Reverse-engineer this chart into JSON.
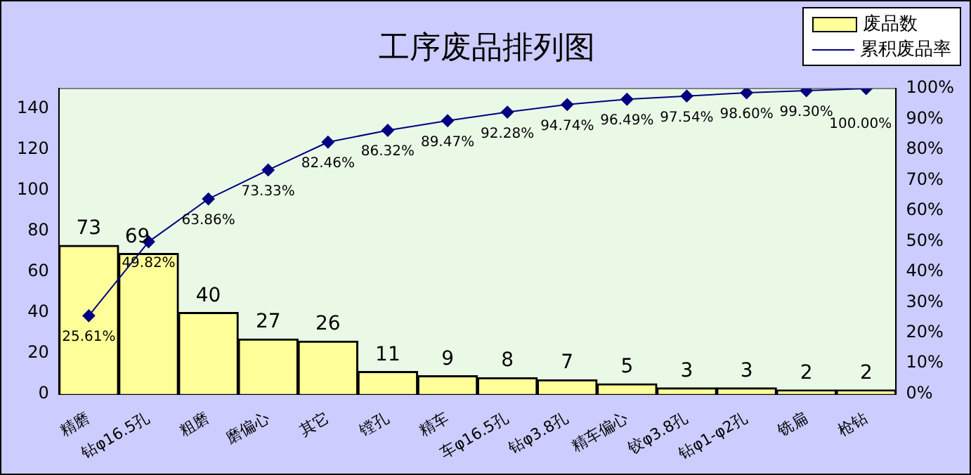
{
  "chart_data": {
    "type": "bar",
    "title": "工序废品排列图",
    "categories": [
      "精磨",
      "钻φ16.5孔",
      "粗磨",
      "磨偏心",
      "其它",
      "镗孔",
      "精车",
      "车φ16.5孔",
      "钻φ3.8孔",
      "精车偏心",
      "铰φ3.8孔",
      "钻φ1-φ2孔",
      "铣扁",
      "枪钻"
    ],
    "series": [
      {
        "name": "废品数",
        "color": "#ffff99",
        "values": [
          73,
          69,
          40,
          27,
          26,
          11,
          9,
          8,
          7,
          5,
          3,
          3,
          2,
          2
        ],
        "value_labels": [
          "73",
          "69",
          "40",
          "27",
          "26",
          "11",
          "9",
          "8",
          "7",
          "5",
          "3",
          "3",
          "2",
          "2"
        ]
      },
      {
        "name": "累积废品率",
        "type": "line",
        "axis": "y2",
        "color": "#000080",
        "values": [
          25.61,
          49.82,
          63.86,
          73.33,
          82.46,
          86.32,
          89.47,
          92.28,
          94.74,
          96.49,
          97.54,
          98.6,
          99.3,
          100
        ],
        "value_labels": [
          "25.61%",
          "49.82%",
          "63.86%",
          "73.33%",
          "82.46%",
          "86.32%",
          "89.47%",
          "92.28%",
          "94.74%",
          "96.49%",
          "97.54%",
          "98.60%",
          "99.30%",
          "100.00%"
        ]
      }
    ],
    "ylim": [
      0,
      150
    ],
    "yticks": [
      0,
      20,
      40,
      60,
      80,
      100,
      120,
      140
    ],
    "y2lim": [
      0,
      100
    ],
    "y2ticks": [
      {
        "value": 0,
        "label": "0%"
      },
      {
        "value": 10,
        "label": "10%"
      },
      {
        "value": 20,
        "label": "20%"
      },
      {
        "value": 30,
        "label": "30%"
      },
      {
        "value": 40,
        "label": "40%"
      },
      {
        "value": 50,
        "label": "50%"
      },
      {
        "value": 60,
        "label": "60%"
      },
      {
        "value": 70,
        "label": "70%"
      },
      {
        "value": 80,
        "label": "80%"
      },
      {
        "value": 90,
        "label": "90%"
      },
      {
        "value": 100,
        "label": "100%"
      }
    ],
    "grid": false,
    "legend": "top right",
    "marker": "diamond",
    "line_style": "solid"
  }
}
